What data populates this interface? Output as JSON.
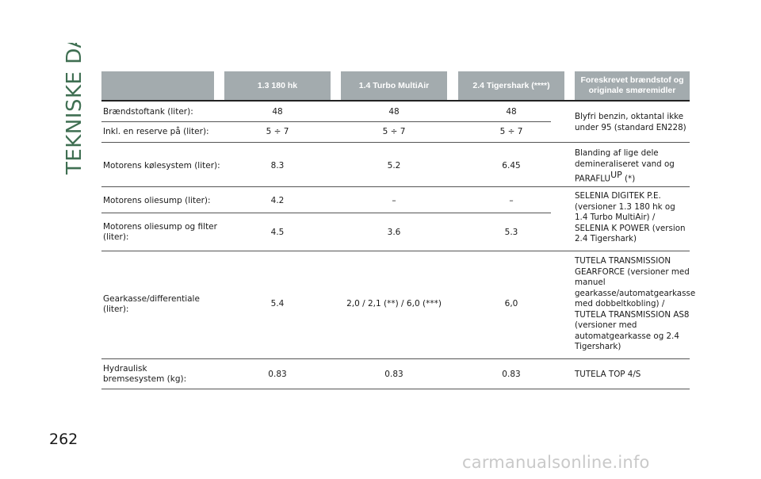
{
  "section_title": "TEKNISKE DATA",
  "page_number": "262",
  "watermark": "carmanualsonline.info",
  "table": {
    "headers": [
      "",
      "1.3 180 hk",
      "1.4 Turbo MultiAir",
      "2.4 Tigershark (****)",
      "Foreskrevet brændstof og originale smøremidler"
    ],
    "rows": [
      {
        "label": "Brændstoftank (liter):",
        "v1": "48",
        "v2": "48",
        "v3": "48"
      },
      {
        "label": "Inkl. en reserve på (liter):",
        "v1": "5 ÷ 7",
        "v2": "5 ÷ 7",
        "v3": "5 ÷ 7"
      },
      {
        "label": "Motorens kølesystem (liter):",
        "v1": "8.3",
        "v2": "5.2",
        "v3": "6.45"
      },
      {
        "label": "Motorens oliesump (liter):",
        "v1": "4.2",
        "v2": "–",
        "v3": "–"
      },
      {
        "label": "Motorens oliesump og filter (liter):",
        "v1": "4.5",
        "v2": "3.6",
        "v3": "5.3"
      },
      {
        "label": "Gearkasse/differentiale (liter):",
        "v1": "5.4",
        "v2": "2,0 / 2,1 (**) / 6,0 (***)",
        "v3": "6,0"
      },
      {
        "label": "Hydraulisk bremsesystem (kg):",
        "v1": "0.83",
        "v2": "0.83",
        "v3": "0.83"
      }
    ],
    "descriptions": {
      "fuel": "Blyfri benzin, oktantal ikke under 95 (standard EN228)",
      "coolant_main": "Blanding af lige dele demineraliseret vand og PARAFLU",
      "coolant_sup": "UP",
      "coolant_note": "(*)",
      "oil": "SELENIA DIGITEK P.E. (versioner 1.3 180 hk og 1.4 Turbo MultiAir) / SELENIA K POWER (version 2.4 Tigershark)",
      "gear": "TUTELA TRANSMISSION GEARFORCE (versioner med manuel gearkasse/automatgearkasse med dobbeltkobling) / TUTELA TRANSMISSION AS8 (versioner med automatgearkasse og 2.4 Tigershark)",
      "brake": "TUTELA TOP 4/S"
    }
  }
}
